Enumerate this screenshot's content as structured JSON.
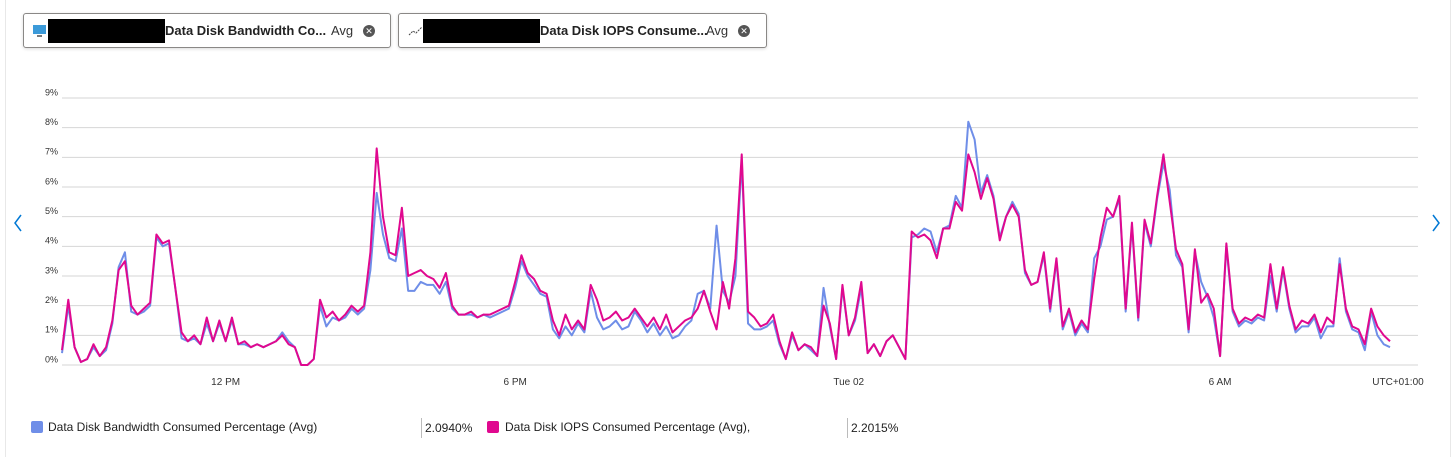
{
  "chart_data": {
    "type": "line",
    "pills": [
      {
        "title": "Data Disk Bandwidth Co...",
        "agg": "Avg"
      },
      {
        "title": "Data Disk IOPS Consume...",
        "agg": "Avg"
      }
    ],
    "categories": [
      null,
      null,
      null,
      null,
      null,
      null,
      null,
      null,
      null,
      null,
      null,
      null,
      null,
      null,
      null,
      null,
      null,
      null,
      null,
      null,
      null,
      null,
      null,
      null,
      null,
      null,
      "12 PM",
      null,
      null,
      null,
      null,
      null,
      null,
      null,
      null,
      null,
      null,
      null,
      null,
      null,
      null,
      null,
      null,
      null,
      null,
      null,
      null,
      null,
      null,
      null,
      null,
      null,
      null,
      null,
      null,
      null,
      null,
      null,
      null,
      null,
      null,
      null,
      null,
      null,
      null,
      null,
      null,
      null,
      null,
      null,
      null,
      null,
      "6 PM",
      null,
      null,
      null,
      null,
      null,
      null,
      null,
      null,
      null,
      null,
      null,
      null,
      null,
      null,
      null,
      null,
      null,
      null,
      null,
      null,
      null,
      null,
      null,
      null,
      null,
      null,
      null,
      null,
      null,
      null,
      null,
      null,
      null,
      null,
      null,
      null,
      null,
      null,
      null,
      null,
      null,
      null,
      null,
      null,
      null,
      null,
      null,
      null,
      null,
      null,
      null,
      null,
      "Tue 02",
      null,
      null,
      null,
      null,
      null,
      null,
      null,
      null,
      null,
      null,
      null,
      null,
      null,
      null,
      null,
      null,
      null,
      null,
      null,
      null,
      null,
      null,
      null,
      null,
      null,
      null,
      null,
      null,
      null,
      null,
      null,
      null,
      null,
      null,
      null,
      null,
      null,
      null,
      null,
      null,
      null,
      null,
      null,
      null,
      null,
      null,
      null,
      null,
      null,
      null,
      null,
      null,
      null,
      null,
      null,
      null,
      null,
      null,
      "6 AM",
      null,
      null,
      null,
      null,
      null,
      null,
      null,
      null,
      null,
      null,
      null,
      null,
      null,
      null,
      null,
      null,
      null,
      null,
      null,
      null,
      null,
      null,
      null,
      null,
      null,
      null,
      null
    ],
    "timezone": "UTC+01:00",
    "ylim": [
      0,
      9
    ],
    "yticks": [
      {
        "value": 0,
        "label": "0%"
      },
      {
        "value": 1,
        "label": "1%"
      },
      {
        "value": 2,
        "label": "2%"
      },
      {
        "value": 3,
        "label": "3%"
      },
      {
        "value": 4,
        "label": "4%"
      },
      {
        "value": 5,
        "label": "5%"
      },
      {
        "value": 6,
        "label": "6%"
      },
      {
        "value": 7,
        "label": "7%"
      },
      {
        "value": 8,
        "label": "8%"
      },
      {
        "value": 9,
        "label": "9%"
      }
    ],
    "grid": true,
    "series": [
      {
        "name": "Data Disk Bandwidth Consumed Percentage (Avg)",
        "legend_value": "2.0940%",
        "color": "#6f8ee8",
        "values": [
          0.4,
          2.0,
          0.6,
          0.1,
          0.2,
          0.6,
          0.3,
          0.5,
          1.4,
          3.3,
          3.8,
          1.8,
          1.7,
          1.8,
          2.0,
          4.3,
          4.0,
          4.1,
          2.6,
          0.9,
          0.8,
          0.9,
          0.7,
          1.4,
          0.8,
          1.4,
          0.8,
          1.5,
          0.7,
          0.7,
          0.6,
          0.7,
          0.6,
          0.7,
          0.8,
          1.1,
          0.8,
          0.6,
          0.0,
          0.0,
          0.2,
          2.0,
          1.3,
          1.6,
          1.5,
          1.6,
          1.9,
          1.7,
          1.9,
          3.2,
          5.8,
          4.4,
          3.6,
          3.5,
          4.6,
          2.5,
          2.5,
          2.8,
          2.7,
          2.7,
          2.4,
          2.8,
          1.9,
          1.7,
          1.7,
          1.7,
          1.6,
          1.7,
          1.6,
          1.7,
          1.8,
          1.9,
          2.6,
          3.5,
          3.0,
          2.7,
          2.4,
          2.3,
          1.2,
          0.9,
          1.3,
          1.0,
          1.4,
          1.1,
          2.5,
          1.6,
          1.2,
          1.3,
          1.5,
          1.2,
          1.3,
          1.8,
          1.5,
          1.1,
          1.4,
          1.0,
          1.3,
          0.9,
          1.0,
          1.3,
          1.5,
          2.4,
          2.5,
          1.9,
          4.7,
          2.5,
          2.1,
          3.0,
          6.9,
          1.4,
          1.2,
          1.2,
          1.3,
          1.5,
          0.7,
          0.2,
          1.0,
          0.5,
          0.7,
          0.5,
          0.3,
          2.6,
          1.3,
          0.2,
          2.6,
          1.0,
          1.5,
          2.6,
          0.4,
          0.7,
          0.3,
          0.8,
          1.0,
          0.6,
          0.2,
          4.3,
          4.4,
          4.6,
          4.5,
          3.8,
          4.6,
          4.7,
          5.7,
          5.3,
          8.2,
          7.6,
          5.8,
          6.4,
          5.7,
          4.3,
          5.0,
          5.5,
          5.1,
          3.1,
          2.7,
          2.8,
          3.7,
          1.8,
          3.5,
          1.2,
          1.8,
          1.0,
          1.4,
          1.1,
          3.6,
          4.0,
          4.9,
          5.0,
          5.6,
          1.8,
          4.7,
          1.5,
          4.8,
          4.0,
          5.6,
          6.8,
          5.9,
          3.7,
          3.3,
          1.1,
          3.8,
          2.8,
          2.3,
          1.6,
          0.3,
          4.0,
          1.8,
          1.3,
          1.5,
          1.4,
          1.6,
          1.5,
          3.0,
          1.8,
          3.2,
          1.9,
          1.1,
          1.3,
          1.3,
          1.6,
          0.9,
          1.3,
          1.3,
          3.6,
          1.8,
          1.2,
          1.1,
          0.5,
          1.8,
          1.0,
          0.7,
          0.6
        ]
      },
      {
        "name": "Data Disk IOPS Consumed Percentage (Avg),",
        "legend_value": "2.2015%",
        "color": "#e0088f",
        "values": [
          0.5,
          2.2,
          0.6,
          0.1,
          0.2,
          0.7,
          0.3,
          0.6,
          1.5,
          3.2,
          3.5,
          2.0,
          1.7,
          1.9,
          2.1,
          4.4,
          4.1,
          4.2,
          2.6,
          1.1,
          0.8,
          1.0,
          0.7,
          1.6,
          0.8,
          1.5,
          0.8,
          1.6,
          0.7,
          0.8,
          0.6,
          0.7,
          0.6,
          0.7,
          0.8,
          1.0,
          0.7,
          0.6,
          0.0,
          0.0,
          0.2,
          2.2,
          1.6,
          1.8,
          1.5,
          1.7,
          2.0,
          1.8,
          2.0,
          3.8,
          7.3,
          5.0,
          3.8,
          3.7,
          5.3,
          3.0,
          3.1,
          3.2,
          3.0,
          2.9,
          2.6,
          3.1,
          2.0,
          1.7,
          1.7,
          1.8,
          1.6,
          1.7,
          1.7,
          1.8,
          1.9,
          2.0,
          2.8,
          3.7,
          3.1,
          2.9,
          2.5,
          2.4,
          1.5,
          1.0,
          1.7,
          1.2,
          1.5,
          1.2,
          2.7,
          2.2,
          1.5,
          1.6,
          1.8,
          1.5,
          1.6,
          1.9,
          1.6,
          1.3,
          1.6,
          1.2,
          1.7,
          1.1,
          1.3,
          1.5,
          1.6,
          1.9,
          2.5,
          1.8,
          1.2,
          2.8,
          1.9,
          3.6,
          7.1,
          1.8,
          1.6,
          1.3,
          1.4,
          1.7,
          0.8,
          0.2,
          1.1,
          0.5,
          0.7,
          0.6,
          0.3,
          2.0,
          1.4,
          0.2,
          2.7,
          1.0,
          1.6,
          2.8,
          0.4,
          0.7,
          0.3,
          0.8,
          1.0,
          0.6,
          0.2,
          4.5,
          4.3,
          4.4,
          4.2,
          3.6,
          4.6,
          4.6,
          5.5,
          5.2,
          7.1,
          6.5,
          5.6,
          6.3,
          5.6,
          4.2,
          5.0,
          5.4,
          5.0,
          3.2,
          2.7,
          2.8,
          3.8,
          1.9,
          3.6,
          1.3,
          1.9,
          1.1,
          1.5,
          1.2,
          2.9,
          4.3,
          5.3,
          5.0,
          5.7,
          1.9,
          4.8,
          1.6,
          4.9,
          4.1,
          5.7,
          7.1,
          5.5,
          3.9,
          3.4,
          1.2,
          3.9,
          2.1,
          2.4,
          1.9,
          0.3,
          4.1,
          1.9,
          1.4,
          1.6,
          1.5,
          1.7,
          1.6,
          3.4,
          1.9,
          3.3,
          2.0,
          1.2,
          1.5,
          1.4,
          1.7,
          1.1,
          1.6,
          1.4,
          3.4,
          1.9,
          1.3,
          1.2,
          0.7,
          1.9,
          1.3,
          1.0,
          0.8
        ]
      }
    ]
  }
}
